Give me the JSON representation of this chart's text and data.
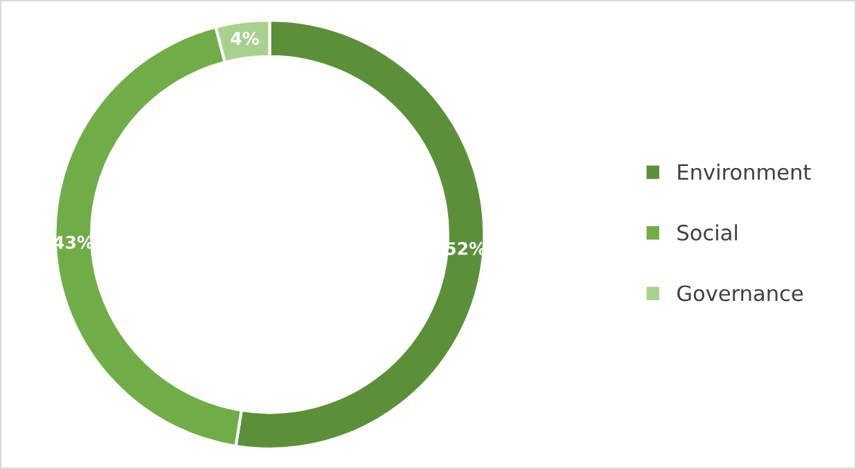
{
  "chart_data": {
    "type": "donut",
    "categories": [
      "Environment",
      "Social",
      "Governance"
    ],
    "values": [
      52,
      43,
      4
    ],
    "colors": [
      "#5b9039",
      "#70ad47",
      "#a9d18e"
    ],
    "value_labels": [
      "52%",
      "43%",
      "4%"
    ],
    "legend": "right"
  }
}
